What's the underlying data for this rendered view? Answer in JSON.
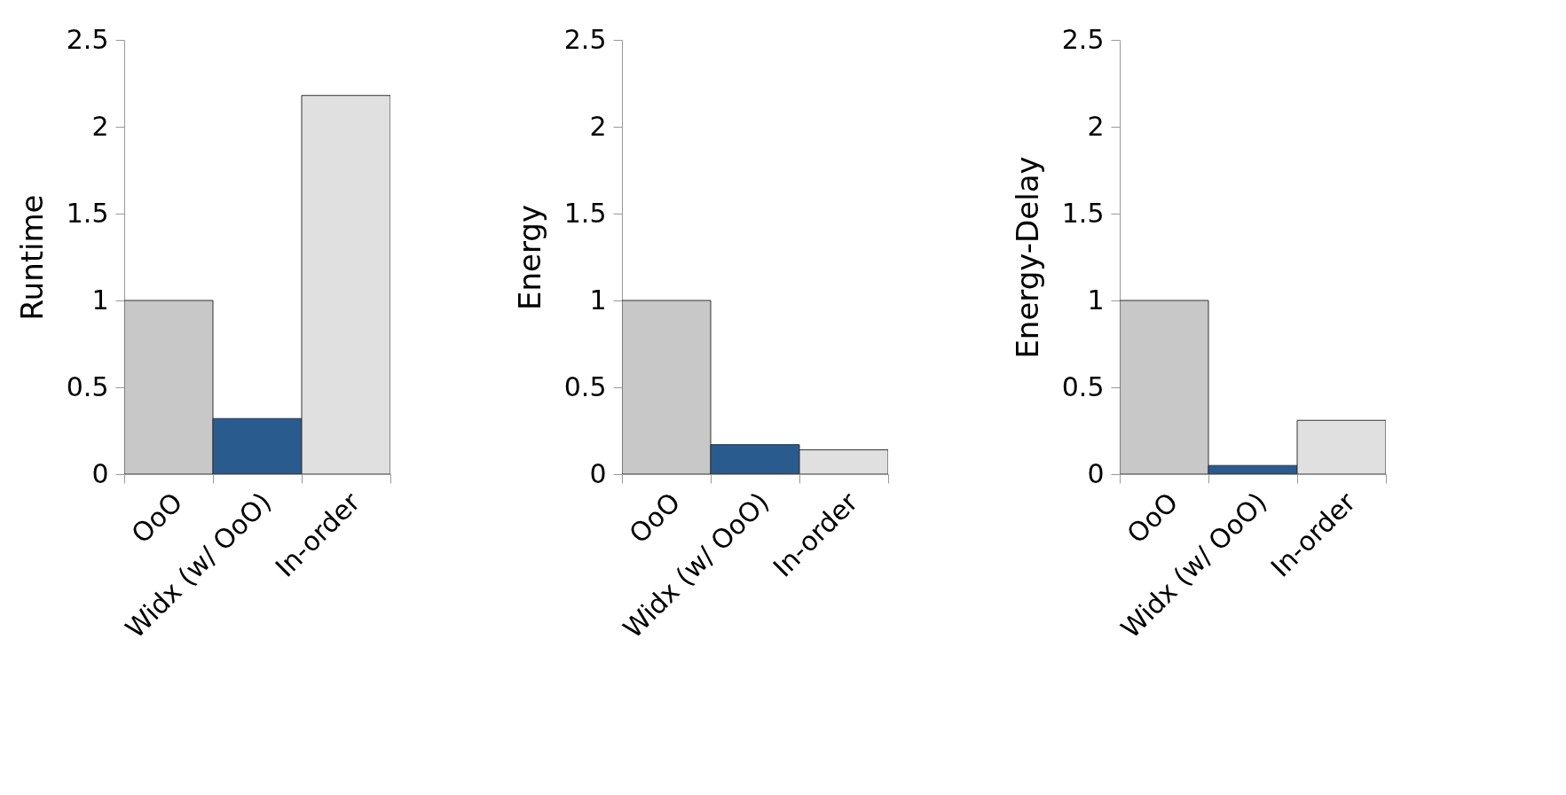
{
  "chart_data": [
    {
      "type": "bar",
      "ylabel": "Runtime",
      "categories": [
        "OoO",
        "Widx (w/ OoO)",
        "In-order"
      ],
      "values": [
        1,
        0.32,
        2.18
      ],
      "colors": [
        "#c8c8c8",
        "#2a5b8e",
        "#e0e0e0"
      ],
      "ylim": [
        0,
        2.5
      ],
      "yticks": [
        0,
        0.5,
        1,
        1.5,
        2,
        2.5
      ],
      "grid": false
    },
    {
      "type": "bar",
      "ylabel": "Energy",
      "categories": [
        "OoO",
        "Widx (w/ OoO)",
        "In-order"
      ],
      "values": [
        1,
        0.17,
        0.14
      ],
      "colors": [
        "#c8c8c8",
        "#2a5b8e",
        "#e0e0e0"
      ],
      "ylim": [
        0,
        2.5
      ],
      "yticks": [
        0,
        0.5,
        1,
        1.5,
        2,
        2.5
      ],
      "grid": false
    },
    {
      "type": "bar",
      "ylabel": "Energy-Delay",
      "categories": [
        "OoO",
        "Widx (w/ OoO)",
        "In-order"
      ],
      "values": [
        1,
        0.05,
        0.31
      ],
      "colors": [
        "#c8c8c8",
        "#2a5b8e",
        "#e0e0e0"
      ],
      "ylim": [
        0,
        2.5
      ],
      "yticks": [
        0,
        0.5,
        1,
        1.5,
        2,
        2.5
      ],
      "grid": false
    }
  ]
}
